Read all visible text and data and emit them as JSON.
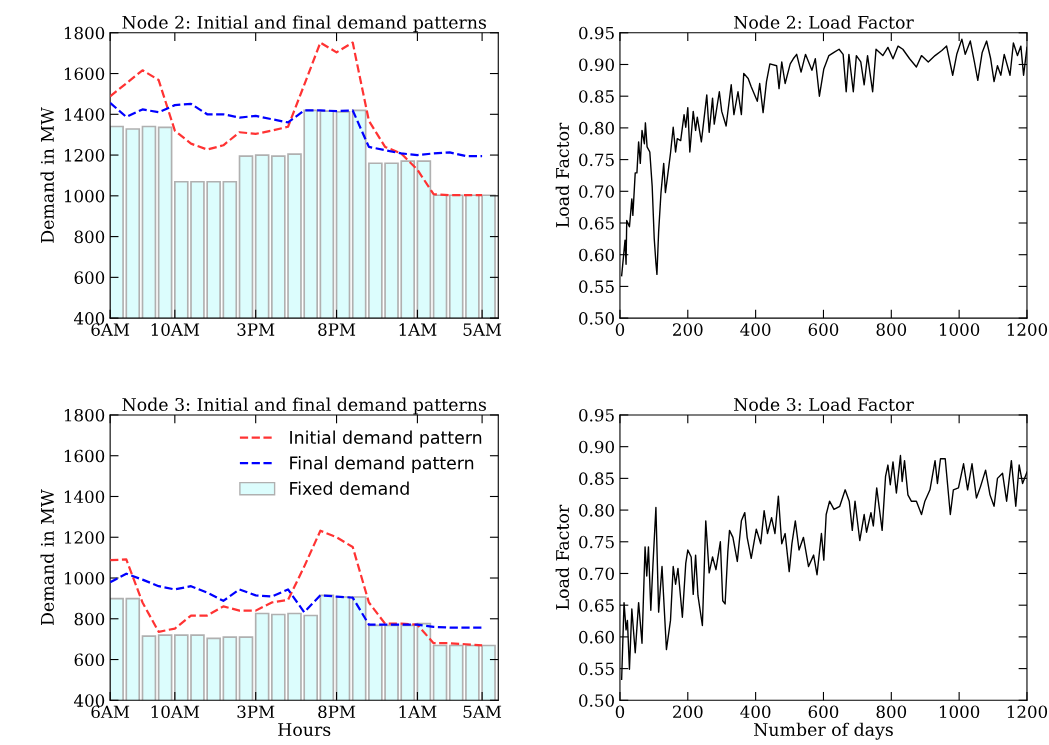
{
  "chart_data": [
    {
      "type": "bar",
      "title": "Node 2: Initial and final demand patterns",
      "ylabel": "Demand in MW",
      "categories": [
        "6AM",
        null,
        null,
        null,
        "10AM",
        null,
        null,
        null,
        null,
        "3PM",
        null,
        null,
        null,
        null,
        "8PM",
        null,
        null,
        null,
        null,
        "1AM",
        null,
        null,
        null,
        "5AM"
      ],
      "ylim": [
        400,
        1800
      ],
      "yticks": [
        400,
        600,
        800,
        1000,
        1200,
        1400,
        1600,
        1800
      ],
      "grid": false,
      "legend": false,
      "series": [
        {
          "type": "bar",
          "color": "#dcfdfd",
          "values": [
            1340,
            1328,
            1340,
            1336,
            1069,
            1069,
            1069,
            1069,
            1195,
            1200,
            1195,
            1205,
            1419,
            1416,
            1412,
            1419,
            1160,
            1160,
            1170,
            1170,
            1003,
            1003,
            1003,
            1003
          ]
        },
        {
          "type": "line",
          "line_style": "dashed",
          "color": "#ff3333",
          "values": [
            1488,
            1552,
            1616,
            1568,
            1320,
            1256,
            1227,
            1248,
            1312,
            1304,
            1320,
            1339,
            1544,
            1752,
            1704,
            1752,
            1368,
            1240,
            1208,
            1128,
            1008,
            1003,
            1003,
            1003
          ]
        },
        {
          "type": "line",
          "line_style": "dashed",
          "color": "#0000ff",
          "values": [
            1456,
            1387,
            1424,
            1410,
            1445,
            1451,
            1400,
            1400,
            1384,
            1392,
            1376,
            1360,
            1419,
            1419,
            1416,
            1419,
            1240,
            1224,
            1208,
            1200,
            1208,
            1213,
            1195,
            1195
          ]
        }
      ]
    },
    {
      "type": "line",
      "title": "Node 2: Load Factor",
      "ylabel": "Load Factor",
      "xlim": [
        0,
        1200
      ],
      "xticks": [
        0,
        200,
        400,
        600,
        800,
        1000,
        1200
      ],
      "ylim": [
        0.5,
        0.95
      ],
      "yticks": [
        {
          "value": 0.5,
          "label": "0.50"
        },
        {
          "value": 0.55,
          "label": "0.55"
        },
        {
          "value": 0.6,
          "label": "0.60"
        },
        {
          "value": 0.65,
          "label": "0.65"
        },
        {
          "value": 0.7,
          "label": "0.70"
        },
        {
          "value": 0.75,
          "label": "0.75"
        },
        {
          "value": 0.8,
          "label": "0.80"
        },
        {
          "value": 0.85,
          "label": "0.85"
        },
        {
          "value": 0.9,
          "label": "0.90"
        },
        {
          "value": 0.95,
          "label": "0.95"
        }
      ],
      "grid": false,
      "legend": false,
      "series": [
        {
          "color": "#000000",
          "line_style": "solid",
          "x": [
            5,
            15,
            18,
            20,
            28,
            35,
            38,
            45,
            50,
            55,
            60,
            65,
            72,
            75,
            80,
            88,
            95,
            101,
            106,
            109,
            114,
            121,
            129,
            134,
            139,
            144,
            149,
            157,
            164,
            169,
            179,
            189,
            194,
            200,
            206,
            216,
            223,
            228,
            240,
            256,
            263,
            273,
            278,
            293,
            300,
            313,
            328,
            336,
            348,
            358,
            365,
            378,
            387,
            405,
            412,
            422,
            432,
            442,
            462,
            469,
            477,
            487,
            502,
            511,
            521,
            534,
            547,
            566,
            576,
            588,
            601,
            616,
            631,
            646,
            658,
            667,
            675,
            688,
            697,
            710,
            720,
            730,
            745,
            755,
            775,
            790,
            805,
            820,
            834,
            854,
            874,
            889,
            909,
            929,
            949,
            963,
            981,
            993,
            1008,
            1018,
            1033,
            1045,
            1055,
            1068,
            1081,
            1093,
            1103,
            1113,
            1123,
            1133,
            1150,
            1160,
            1172,
            1182,
            1190,
            1200
          ],
          "values": [
            0.567,
            0.623,
            0.585,
            0.654,
            0.644,
            0.688,
            0.662,
            0.729,
            0.729,
            0.778,
            0.744,
            0.796,
            0.775,
            0.808,
            0.77,
            0.762,
            0.708,
            0.626,
            0.587,
            0.569,
            0.636,
            0.698,
            0.744,
            0.698,
            0.718,
            0.739,
            0.76,
            0.801,
            0.762,
            0.783,
            0.78,
            0.821,
            0.801,
            0.832,
            0.762,
            0.826,
            0.796,
            0.817,
            0.778,
            0.852,
            0.793,
            0.847,
            0.806,
            0.857,
            0.826,
            0.803,
            0.868,
            0.821,
            0.857,
            0.821,
            0.886,
            0.878,
            0.865,
            0.842,
            0.87,
            0.824,
            0.873,
            0.901,
            0.898,
            0.862,
            0.904,
            0.87,
            0.901,
            0.909,
            0.916,
            0.888,
            0.916,
            0.891,
            0.909,
            0.85,
            0.893,
            0.914,
            0.919,
            0.924,
            0.916,
            0.857,
            0.916,
            0.857,
            0.914,
            0.904,
            0.868,
            0.914,
            0.857,
            0.924,
            0.914,
            0.927,
            0.909,
            0.929,
            0.924,
            0.909,
            0.896,
            0.914,
            0.904,
            0.914,
            0.922,
            0.929,
            0.883,
            0.916,
            0.94,
            0.916,
            0.937,
            0.904,
            0.875,
            0.919,
            0.937,
            0.909,
            0.873,
            0.898,
            0.883,
            0.916,
            0.883,
            0.934,
            0.914,
            0.929,
            0.883,
            0.927
          ]
        }
      ]
    },
    {
      "type": "bar",
      "title": "Node 3: Initial and final demand patterns",
      "xlabel": "Hours",
      "ylabel": "Demand in MW",
      "categories": [
        "6AM",
        null,
        null,
        null,
        "10AM",
        null,
        null,
        null,
        null,
        "3PM",
        null,
        null,
        null,
        null,
        "8PM",
        null,
        null,
        null,
        null,
        "1AM",
        null,
        null,
        null,
        "5AM"
      ],
      "ylim": [
        400,
        1800
      ],
      "yticks": [
        400,
        600,
        800,
        1000,
        1200,
        1400,
        1600,
        1800
      ],
      "grid": false,
      "legend": "top right",
      "series": [
        {
          "type": "line",
          "line_style": "dashed",
          "name": "Initial demand pattern",
          "color": "#ff3333",
          "values": [
            1088,
            1091,
            880,
            736,
            752,
            816,
            816,
            861,
            840,
            840,
            880,
            893,
            1056,
            1232,
            1200,
            1152,
            880,
            776,
            776,
            771,
            680,
            680,
            675,
            669
          ]
        },
        {
          "type": "line",
          "line_style": "dashed",
          "name": "Final demand pattern",
          "color": "#0000ff",
          "values": [
            979,
            1021,
            992,
            960,
            944,
            960,
            928,
            888,
            944,
            915,
            909,
            944,
            832,
            915,
            909,
            904,
            771,
            771,
            771,
            771,
            760,
            757,
            757,
            757
          ]
        },
        {
          "type": "bar",
          "name": "Fixed demand",
          "color": "#dcfdfd",
          "values": [
            899,
            899,
            715,
            720,
            720,
            720,
            704,
            710,
            710,
            826,
            821,
            826,
            816,
            915,
            907,
            907,
            768,
            768,
            768,
            776,
            669,
            669,
            669,
            669
          ]
        }
      ]
    },
    {
      "type": "line",
      "title": "Node 3: Load Factor",
      "xlabel": "Number of days",
      "ylabel": "Load Factor",
      "xlim": [
        0,
        1200
      ],
      "xticks": [
        0,
        200,
        400,
        600,
        800,
        1000,
        1200
      ],
      "ylim": [
        0.5,
        0.95
      ],
      "yticks": [
        {
          "value": 0.5,
          "label": "0.50"
        },
        {
          "value": 0.55,
          "label": "0.55"
        },
        {
          "value": 0.6,
          "label": "0.60"
        },
        {
          "value": 0.65,
          "label": "0.65"
        },
        {
          "value": 0.7,
          "label": "0.70"
        },
        {
          "value": 0.75,
          "label": "0.75"
        },
        {
          "value": 0.8,
          "label": "0.80"
        },
        {
          "value": 0.85,
          "label": "0.85"
        },
        {
          "value": 0.9,
          "label": "0.90"
        },
        {
          "value": 0.95,
          "label": "0.95"
        }
      ],
      "grid": false,
      "legend": false,
      "series": [
        {
          "color": "#000000",
          "line_style": "solid",
          "x": [
            5,
            12,
            18,
            22,
            28,
            35,
            45,
            55,
            65,
            74,
            79,
            84,
            91,
            97,
            106,
            114,
            124,
            137,
            149,
            157,
            164,
            171,
            184,
            194,
            200,
            210,
            216,
            223,
            230,
            243,
            253,
            263,
            273,
            283,
            296,
            303,
            310,
            318,
            323,
            333,
            346,
            358,
            368,
            375,
            387,
            402,
            415,
            425,
            435,
            447,
            457,
            467,
            477,
            487,
            499,
            507,
            517,
            528,
            541,
            556,
            571,
            581,
            594,
            601,
            608,
            618,
            631,
            648,
            664,
            676,
            685,
            693,
            707,
            720,
            727,
            740,
            747,
            757,
            767,
            773,
            783,
            790,
            797,
            805,
            815,
            827,
            832,
            839,
            849,
            859,
            874,
            889,
            899,
            914,
            929,
            936,
            945,
            959,
            974,
            983,
            998,
            1013,
            1025,
            1038,
            1051,
            1063,
            1078,
            1091,
            1103,
            1113,
            1128,
            1140,
            1154,
            1167,
            1177,
            1187,
            1200
          ],
          "values": [
            0.533,
            0.654,
            0.611,
            0.626,
            0.549,
            0.644,
            0.575,
            0.654,
            0.59,
            0.742,
            0.696,
            0.742,
            0.642,
            0.711,
            0.804,
            0.639,
            0.711,
            0.58,
            0.626,
            0.711,
            0.683,
            0.708,
            0.631,
            0.716,
            0.737,
            0.726,
            0.667,
            0.729,
            0.665,
            0.618,
            0.783,
            0.701,
            0.726,
            0.706,
            0.75,
            0.657,
            0.652,
            0.734,
            0.768,
            0.757,
            0.719,
            0.783,
            0.796,
            0.757,
            0.724,
            0.77,
            0.747,
            0.799,
            0.763,
            0.788,
            0.763,
            0.822,
            0.747,
            0.763,
            0.703,
            0.747,
            0.783,
            0.737,
            0.757,
            0.711,
            0.729,
            0.698,
            0.763,
            0.721,
            0.793,
            0.814,
            0.801,
            0.806,
            0.832,
            0.814,
            0.768,
            0.814,
            0.752,
            0.793,
            0.765,
            0.796,
            0.775,
            0.835,
            0.793,
            0.768,
            0.853,
            0.871,
            0.84,
            0.876,
            0.827,
            0.886,
            0.845,
            0.878,
            0.824,
            0.814,
            0.814,
            0.793,
            0.814,
            0.832,
            0.878,
            0.842,
            0.881,
            0.881,
            0.793,
            0.832,
            0.835,
            0.873,
            0.832,
            0.873,
            0.819,
            0.837,
            0.863,
            0.824,
            0.806,
            0.85,
            0.858,
            0.814,
            0.878,
            0.806,
            0.871,
            0.842,
            0.86
          ]
        }
      ]
    }
  ]
}
